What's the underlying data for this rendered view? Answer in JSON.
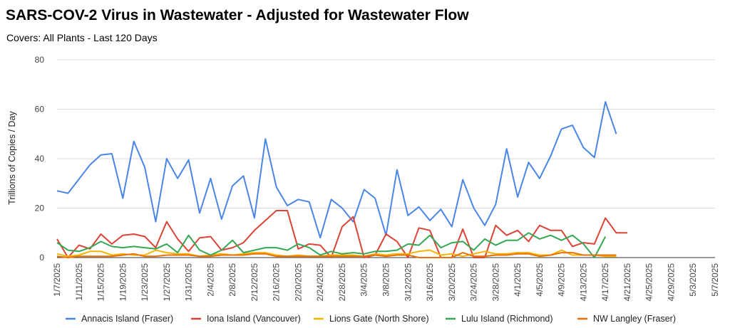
{
  "chart_data": {
    "type": "line",
    "title": "SARS-COV-2 Virus in Wastewater - Adjusted for Wastewater Flow",
    "subtitle": "Covers: All Plants - Last 120 Days",
    "ylabel": "Trillions of Copies / Day",
    "ylim": [
      0,
      80
    ],
    "yticks": [
      0,
      20,
      40,
      60,
      80
    ],
    "grid": true,
    "legend_position": "bottom",
    "x": [
      "1/7/2025",
      "1/9/2025",
      "1/11/2025",
      "1/13/2025",
      "1/15/2025",
      "1/17/2025",
      "1/19/2025",
      "1/21/2025",
      "1/23/2025",
      "1/25/2025",
      "1/27/2025",
      "1/29/2025",
      "1/31/2025",
      "2/2/2025",
      "2/4/2025",
      "2/6/2025",
      "2/8/2025",
      "2/10/2025",
      "2/12/2025",
      "2/14/2025",
      "2/16/2025",
      "2/18/2025",
      "2/20/2025",
      "2/22/2025",
      "2/24/2025",
      "2/26/2025",
      "2/28/2025",
      "3/2/2025",
      "3/4/2025",
      "3/6/2025",
      "3/8/2025",
      "3/10/2025",
      "3/12/2025",
      "3/14/2025",
      "3/16/2025",
      "3/18/2025",
      "3/20/2025",
      "3/22/2025",
      "3/24/2025",
      "3/26/2025",
      "3/28/2025",
      "3/30/2025",
      "4/1/2025",
      "4/3/2025",
      "4/5/2025",
      "4/7/2025",
      "4/9/2025",
      "4/11/2025",
      "4/13/2025",
      "4/15/2025",
      "4/17/2025",
      "4/19/2025",
      "4/21/2025",
      "4/23/2025",
      "4/25/2025",
      "4/27/2025",
      "4/29/2025",
      "5/1/2025",
      "5/3/2025",
      "5/5/2025",
      "5/7/2025"
    ],
    "series": [
      {
        "name": "Annacis Island (Fraser)",
        "color": "#4a86e8",
        "points": [
          [
            "1/7/2025",
            27
          ],
          [
            "1/9/2025",
            26
          ],
          [
            "1/13/2025",
            37.5
          ],
          [
            "1/15/2025",
            41.5
          ],
          [
            "1/17/2025",
            42
          ],
          [
            "1/19/2025",
            24
          ],
          [
            "1/21/2025",
            47
          ],
          [
            "1/23/2025",
            36.5
          ],
          [
            "1/25/2025",
            14.5
          ],
          [
            "1/27/2025",
            40
          ],
          [
            "1/29/2025",
            32
          ],
          [
            "1/31/2025",
            39.5
          ],
          [
            "2/2/2025",
            18
          ],
          [
            "2/4/2025",
            32
          ],
          [
            "2/6/2025",
            15.5
          ],
          [
            "2/8/2025",
            29
          ],
          [
            "2/10/2025",
            33
          ],
          [
            "2/12/2025",
            16
          ],
          [
            "2/14/2025",
            48
          ],
          [
            "2/16/2025",
            28.5
          ],
          [
            "2/18/2025",
            21
          ],
          [
            "2/20/2025",
            23.5
          ],
          [
            "2/22/2025",
            22.5
          ],
          [
            "2/24/2025",
            8
          ],
          [
            "2/26/2025",
            23.5
          ],
          [
            "2/28/2025",
            20
          ],
          [
            "3/2/2025",
            14.5
          ],
          [
            "3/4/2025",
            27.5
          ],
          [
            "3/6/2025",
            24
          ],
          [
            "3/8/2025",
            9
          ],
          [
            "3/10/2025",
            35.5
          ],
          [
            "3/12/2025",
            17
          ],
          [
            "3/14/2025",
            20.5
          ],
          [
            "3/16/2025",
            15
          ],
          [
            "3/18/2025",
            19.5
          ],
          [
            "3/20/2025",
            12.5
          ],
          [
            "3/22/2025",
            31.5
          ],
          [
            "3/24/2025",
            20
          ],
          [
            "3/26/2025",
            13
          ],
          [
            "3/28/2025",
            21.5
          ],
          [
            "3/30/2025",
            44
          ],
          [
            "4/1/2025",
            24.5
          ],
          [
            "4/3/2025",
            38.5
          ],
          [
            "4/5/2025",
            32
          ],
          [
            "4/7/2025",
            41
          ],
          [
            "4/9/2025",
            52
          ],
          [
            "4/11/2025",
            53.5
          ],
          [
            "4/13/2025",
            44.5
          ],
          [
            "4/15/2025",
            40.5
          ],
          [
            "4/17/2025",
            63
          ],
          [
            "4/19/2025",
            50
          ]
        ]
      },
      {
        "name": "Iona Island (Vancouver)",
        "color": "#db4437",
        "points": [
          [
            "1/7/2025",
            7.5
          ],
          [
            "1/9/2025",
            0
          ],
          [
            "1/11/2025",
            5
          ],
          [
            "1/13/2025",
            3.5
          ],
          [
            "1/15/2025",
            9.5
          ],
          [
            "1/17/2025",
            5.5
          ],
          [
            "1/19/2025",
            9
          ],
          [
            "1/21/2025",
            9.5
          ],
          [
            "1/23/2025",
            8.5
          ],
          [
            "1/25/2025",
            4
          ],
          [
            "1/27/2025",
            14.5
          ],
          [
            "1/29/2025",
            7.5
          ],
          [
            "1/31/2025",
            2.5
          ],
          [
            "2/2/2025",
            8
          ],
          [
            "2/4/2025",
            8.5
          ],
          [
            "2/6/2025",
            3
          ],
          [
            "2/8/2025",
            4
          ],
          [
            "2/10/2025",
            6
          ],
          [
            "2/12/2025",
            11
          ],
          [
            "2/14/2025",
            15
          ],
          [
            "2/16/2025",
            19
          ],
          [
            "2/18/2025",
            19
          ],
          [
            "2/20/2025",
            3.5
          ],
          [
            "2/22/2025",
            5.5
          ],
          [
            "2/24/2025",
            5
          ],
          [
            "2/26/2025",
            0
          ],
          [
            "2/28/2025",
            12.5
          ],
          [
            "3/2/2025",
            16.5
          ],
          [
            "3/4/2025",
            0
          ],
          [
            "3/6/2025",
            1
          ],
          [
            "3/8/2025",
            9.5
          ],
          [
            "3/10/2025",
            6.5
          ],
          [
            "3/12/2025",
            0
          ],
          [
            "3/14/2025",
            12
          ],
          [
            "3/16/2025",
            11
          ],
          [
            "3/18/2025",
            0
          ],
          [
            "3/20/2025",
            0
          ],
          [
            "3/22/2025",
            11.5
          ],
          [
            "3/24/2025",
            0
          ],
          [
            "3/26/2025",
            0
          ],
          [
            "3/28/2025",
            13
          ],
          [
            "3/30/2025",
            9
          ],
          [
            "4/1/2025",
            11
          ],
          [
            "4/3/2025",
            6.5
          ],
          [
            "4/5/2025",
            13
          ],
          [
            "4/7/2025",
            11
          ],
          [
            "4/9/2025",
            11
          ],
          [
            "4/11/2025",
            4.5
          ],
          [
            "4/13/2025",
            6
          ],
          [
            "4/15/2025",
            5.5
          ],
          [
            "4/17/2025",
            16
          ],
          [
            "4/19/2025",
            10
          ],
          [
            "4/21/2025",
            10
          ]
        ]
      },
      {
        "name": "Lions Gate (North Shore)",
        "color": "#f4b400",
        "points": [
          [
            "1/7/2025",
            1.5
          ],
          [
            "1/9/2025",
            0.5
          ],
          [
            "1/11/2025",
            1
          ],
          [
            "1/13/2025",
            2.5
          ],
          [
            "1/15/2025",
            2.5
          ],
          [
            "1/17/2025",
            1
          ],
          [
            "1/19/2025",
            1.5
          ],
          [
            "1/21/2025",
            1
          ],
          [
            "1/23/2025",
            1
          ],
          [
            "1/25/2025",
            3
          ],
          [
            "1/27/2025",
            2
          ],
          [
            "1/29/2025",
            1.5
          ],
          [
            "1/31/2025",
            1.5
          ],
          [
            "2/2/2025",
            0.5
          ],
          [
            "2/4/2025",
            1
          ],
          [
            "2/6/2025",
            1.5
          ],
          [
            "2/8/2025",
            1
          ],
          [
            "2/10/2025",
            1.5
          ],
          [
            "2/12/2025",
            2
          ],
          [
            "2/14/2025",
            2
          ],
          [
            "2/16/2025",
            1
          ],
          [
            "2/18/2025",
            0.5
          ],
          [
            "2/20/2025",
            1
          ],
          [
            "2/22/2025",
            0.5
          ],
          [
            "2/24/2025",
            0.5
          ],
          [
            "2/26/2025",
            1
          ],
          [
            "2/28/2025",
            1
          ],
          [
            "3/2/2025",
            1
          ],
          [
            "3/4/2025",
            0.5
          ],
          [
            "3/6/2025",
            1.5
          ],
          [
            "3/8/2025",
            1
          ],
          [
            "3/10/2025",
            1.5
          ],
          [
            "3/12/2025",
            1.5
          ],
          [
            "3/14/2025",
            2.5
          ],
          [
            "3/16/2025",
            3
          ],
          [
            "3/18/2025",
            1
          ],
          [
            "3/20/2025",
            1.5
          ],
          [
            "3/22/2025",
            0.5
          ],
          [
            "3/24/2025",
            1.5
          ],
          [
            "3/26/2025",
            2.5
          ],
          [
            "3/28/2025",
            1.5
          ],
          [
            "3/30/2025",
            1.5
          ],
          [
            "4/1/2025",
            2
          ],
          [
            "4/3/2025",
            2
          ],
          [
            "4/5/2025",
            1
          ],
          [
            "4/7/2025",
            1
          ],
          [
            "4/9/2025",
            3
          ],
          [
            "4/11/2025",
            1
          ],
          [
            "4/13/2025",
            1
          ],
          [
            "4/15/2025",
            1
          ],
          [
            "4/17/2025",
            0.5
          ],
          [
            "4/19/2025",
            0.5
          ]
        ]
      },
      {
        "name": "Lulu Island (Richmond)",
        "color": "#34a853",
        "points": [
          [
            "1/7/2025",
            6
          ],
          [
            "1/9/2025",
            3
          ],
          [
            "1/11/2025",
            2.5
          ],
          [
            "1/13/2025",
            4
          ],
          [
            "1/15/2025",
            6.5
          ],
          [
            "1/17/2025",
            4.5
          ],
          [
            "1/19/2025",
            4
          ],
          [
            "1/21/2025",
            4.5
          ],
          [
            "1/23/2025",
            4
          ],
          [
            "1/25/2025",
            3.5
          ],
          [
            "1/27/2025",
            5.5
          ],
          [
            "1/29/2025",
            2
          ],
          [
            "1/31/2025",
            9
          ],
          [
            "2/2/2025",
            3
          ],
          [
            "2/4/2025",
            1
          ],
          [
            "2/6/2025",
            3
          ],
          [
            "2/8/2025",
            7
          ],
          [
            "2/10/2025",
            2
          ],
          [
            "2/12/2025",
            3
          ],
          [
            "2/14/2025",
            4
          ],
          [
            "2/16/2025",
            4
          ],
          [
            "2/18/2025",
            3
          ],
          [
            "2/20/2025",
            5.5
          ],
          [
            "2/22/2025",
            4
          ],
          [
            "2/24/2025",
            1
          ],
          [
            "2/26/2025",
            2.5
          ],
          [
            "2/28/2025",
            1.5
          ],
          [
            "3/2/2025",
            2
          ],
          [
            "3/4/2025",
            1.5
          ],
          [
            "3/6/2025",
            2.5
          ],
          [
            "3/8/2025",
            2.5
          ],
          [
            "3/10/2025",
            3
          ],
          [
            "3/12/2025",
            5.5
          ],
          [
            "3/14/2025",
            5
          ],
          [
            "3/16/2025",
            9
          ],
          [
            "3/18/2025",
            4
          ],
          [
            "3/20/2025",
            6
          ],
          [
            "3/22/2025",
            6.5
          ],
          [
            "3/24/2025",
            3
          ],
          [
            "3/26/2025",
            7.5
          ],
          [
            "3/28/2025",
            5
          ],
          [
            "3/30/2025",
            7
          ],
          [
            "4/1/2025",
            7
          ],
          [
            "4/3/2025",
            10
          ],
          [
            "4/5/2025",
            7.5
          ],
          [
            "4/7/2025",
            9
          ],
          [
            "4/9/2025",
            7
          ],
          [
            "4/11/2025",
            9
          ],
          [
            "4/13/2025",
            5.5
          ],
          [
            "4/15/2025",
            0
          ],
          [
            "4/17/2025",
            8.5
          ]
        ]
      },
      {
        "name": "NW Langley (Fraser)",
        "color": "#e8710a",
        "points": [
          [
            "1/7/2025",
            0.5
          ],
          [
            "1/9/2025",
            0
          ],
          [
            "1/11/2025",
            0.5
          ],
          [
            "1/13/2025",
            0.5
          ],
          [
            "1/15/2025",
            0.5
          ],
          [
            "1/17/2025",
            0.5
          ],
          [
            "1/19/2025",
            1
          ],
          [
            "1/21/2025",
            1.5
          ],
          [
            "1/23/2025",
            0.5
          ],
          [
            "1/25/2025",
            0.5
          ],
          [
            "1/27/2025",
            1
          ],
          [
            "1/29/2025",
            1
          ],
          [
            "1/31/2025",
            1
          ],
          [
            "2/2/2025",
            0.5
          ],
          [
            "2/4/2025",
            0.5
          ],
          [
            "2/6/2025",
            1
          ],
          [
            "2/8/2025",
            1
          ],
          [
            "2/10/2025",
            1
          ],
          [
            "2/12/2025",
            1.5
          ],
          [
            "2/14/2025",
            1.5
          ],
          [
            "2/16/2025",
            0.5
          ],
          [
            "2/18/2025",
            0.5
          ],
          [
            "2/20/2025",
            0.5
          ],
          [
            "2/22/2025",
            0.5
          ],
          [
            "2/24/2025",
            0.5
          ],
          [
            "2/26/2025",
            0.5
          ],
          [
            "2/28/2025",
            0.5
          ],
          [
            "3/2/2025",
            0.5
          ],
          [
            "3/4/2025",
            0.5
          ],
          [
            "3/6/2025",
            1
          ],
          [
            "3/8/2025",
            0.5
          ],
          [
            "3/10/2025",
            1
          ],
          [
            "3/12/2025",
            1
          ],
          [
            "3/14/2025",
            0
          ],
          [
            "3/16/2025",
            0
          ],
          [
            "3/18/2025",
            0
          ],
          [
            "3/20/2025",
            0
          ],
          [
            "3/22/2025",
            2
          ],
          [
            "3/24/2025",
            0.5
          ],
          [
            "3/26/2025",
            0.5
          ],
          [
            "3/28/2025",
            1
          ],
          [
            "3/30/2025",
            1
          ],
          [
            "4/1/2025",
            1.5
          ],
          [
            "4/3/2025",
            1.5
          ],
          [
            "4/5/2025",
            0.5
          ],
          [
            "4/7/2025",
            1
          ],
          [
            "4/9/2025",
            2
          ],
          [
            "4/11/2025",
            2
          ],
          [
            "4/13/2025",
            1
          ],
          [
            "4/15/2025",
            1
          ],
          [
            "4/17/2025",
            1
          ],
          [
            "4/19/2025",
            1
          ]
        ]
      }
    ]
  }
}
